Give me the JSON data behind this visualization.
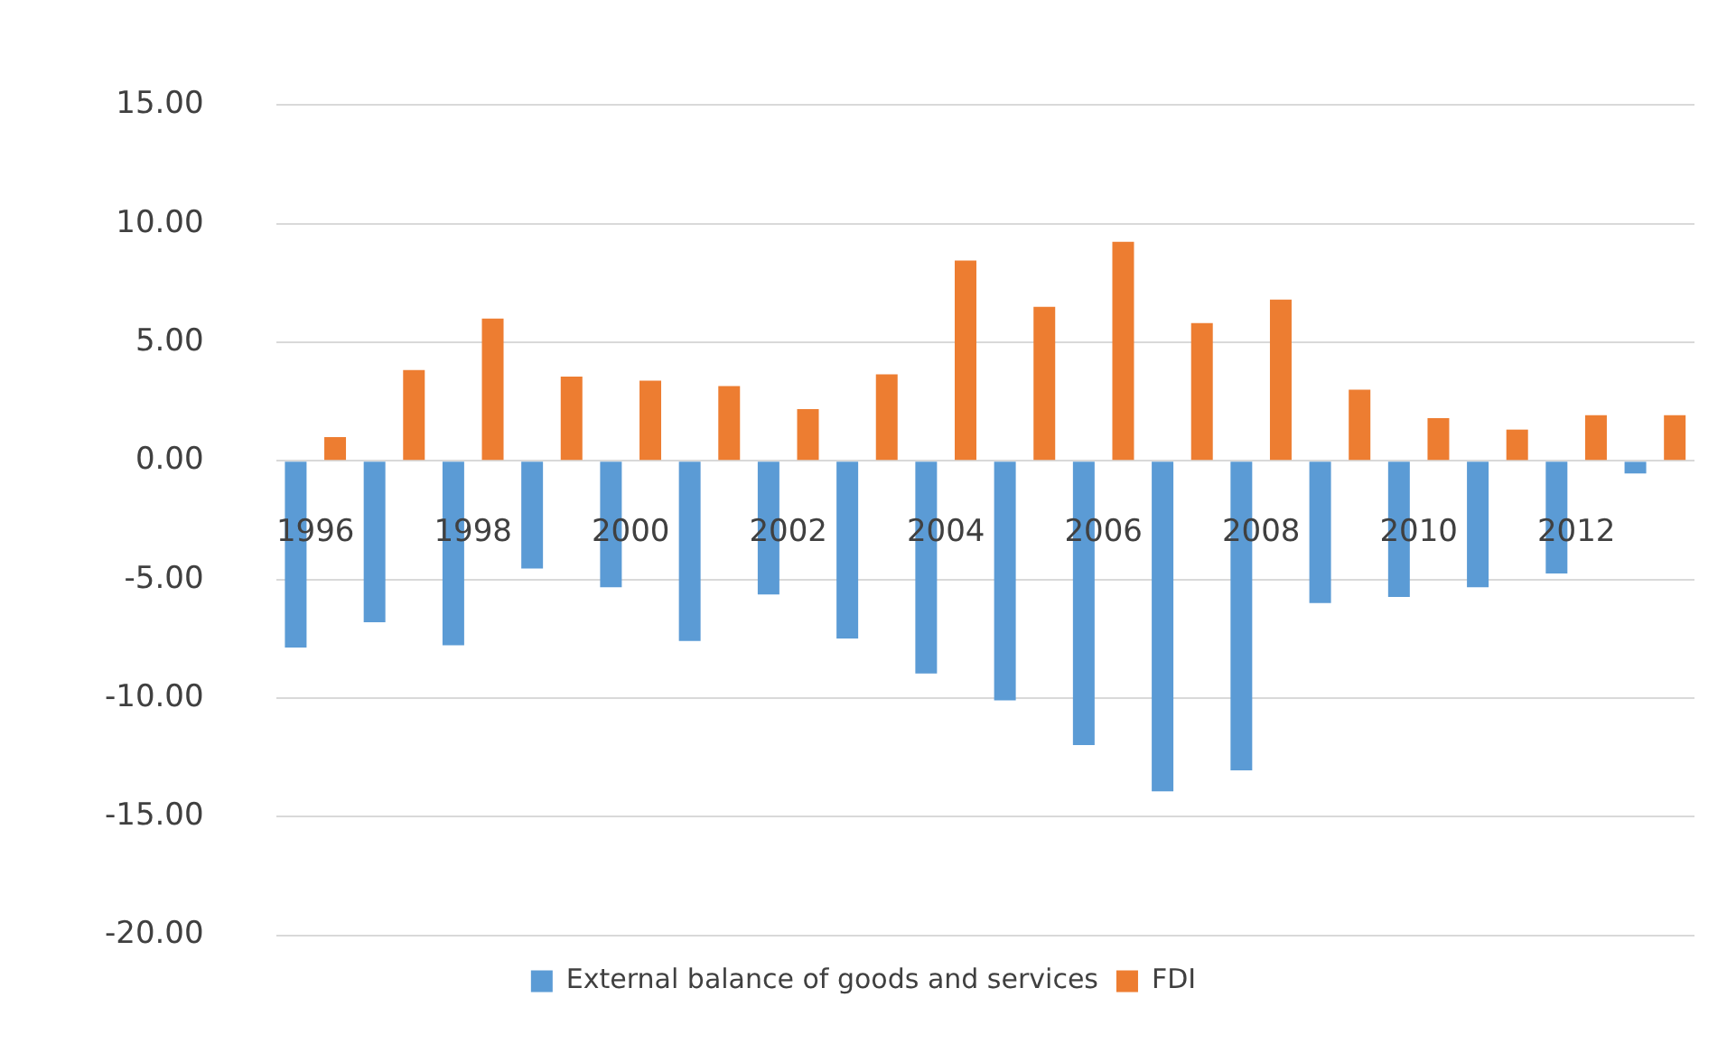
{
  "chart_data": {
    "type": "bar",
    "categories": [
      "1996",
      null,
      "1998",
      null,
      "2000",
      null,
      "2002",
      null,
      "2004",
      null,
      "2006",
      null,
      "2008",
      null,
      "2010",
      null,
      "2012",
      null
    ],
    "series": [
      {
        "name": "External balance of goods and services",
        "color": "#5b9bd5",
        "values": [
          -7.87,
          -6.8,
          -7.77,
          -4.54,
          -5.33,
          -7.59,
          -5.63,
          -7.49,
          -8.96,
          -10.1,
          -11.98,
          -13.93,
          -13.05,
          -5.99,
          -5.74,
          -5.33,
          -4.75,
          -0.53
        ]
      },
      {
        "name": "FDI",
        "color": "#ed7d31",
        "values": [
          1.0,
          3.83,
          6.0,
          3.55,
          3.38,
          3.15,
          2.18,
          3.65,
          8.45,
          6.5,
          9.24,
          5.81,
          6.8,
          3.0,
          1.8,
          1.32,
          1.93,
          1.93
        ]
      }
    ],
    "ylim": [
      -20,
      15
    ],
    "yticks": [
      {
        "value": -20,
        "label": "-20.00"
      },
      {
        "value": -15,
        "label": "-15.00"
      },
      {
        "value": -10,
        "label": "-10.00"
      },
      {
        "value": -5,
        "label": "-5.00"
      },
      {
        "value": 0,
        "label": "0.00"
      },
      {
        "value": 5,
        "label": "5.00"
      },
      {
        "value": 10,
        "label": "10.00"
      },
      {
        "value": 15,
        "label": "15.00"
      }
    ],
    "grid": "y",
    "legend": "bottom"
  }
}
